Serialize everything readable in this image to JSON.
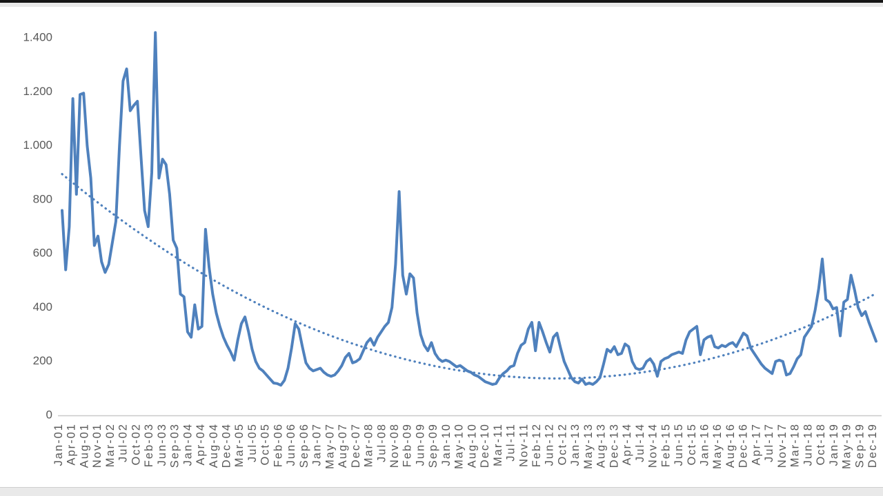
{
  "frame": {
    "background": "#ffffff",
    "top_bar_color": "#161616",
    "strip_color": "#e9e9e9"
  },
  "chart_data": {
    "type": "line",
    "title": "",
    "legend": "none",
    "grid": false,
    "axis_text_color": "#595959",
    "axis_line_color": "#c9c9c9",
    "x_axis": {
      "unit": "month",
      "first_label": "Jan-01",
      "last_label": "Dec-19",
      "tick_labels": [
        "Jan-01",
        "Apr-01",
        "Aug-01",
        "Nov-01",
        "Mar-02",
        "Jul-02",
        "Oct-02",
        "Feb-03",
        "Jun-03",
        "Sep-03",
        "Jan-04",
        "Apr-04",
        "Aug-04",
        "Dec-04",
        "Mar-05",
        "Jul-05",
        "Oct-05",
        "Feb-06",
        "Jun-06",
        "Sep-06",
        "Jan-07",
        "May-07",
        "Aug-07",
        "Dec-07",
        "Mar-08",
        "Jul-08",
        "Nov-08",
        "Feb-09",
        "Jun-09",
        "Sep-09",
        "Jan-10",
        "May-10",
        "Aug-10",
        "Dec-10",
        "Mar-11",
        "Jul-11",
        "Nov-11",
        "Feb-12",
        "Jun-12",
        "Oct-12",
        "Jan-13",
        "May-13",
        "Aug-13",
        "Dec-13",
        "Apr-14",
        "Jul-14",
        "Nov-14",
        "Feb-15",
        "Jun-15",
        "Oct-15",
        "Jan-16",
        "May-16",
        "Aug-16",
        "Dec-16",
        "Apr-17",
        "Jul-17",
        "Nov-17",
        "Mar-18",
        "Jun-18",
        "Oct-18",
        "Jan-19",
        "May-19",
        "Sep-19",
        "Dec-19"
      ]
    },
    "y_axis": {
      "range": [
        0,
        1400
      ],
      "ticks": [
        0,
        200,
        400,
        600,
        800,
        1000,
        1200,
        1400
      ],
      "tick_labels": [
        "0",
        "200",
        "400",
        "600",
        "800",
        "1.000",
        "1.200",
        "1.400"
      ],
      "number_format": "thousands-dot"
    },
    "series": [
      {
        "name": "monthly-values",
        "style": "solid",
        "color": "#4F81BD",
        "stroke_width": 4,
        "start_month": "Jan-01",
        "values": [
          760,
          540,
          700,
          1175,
          820,
          1190,
          1195,
          1000,
          880,
          630,
          665,
          570,
          530,
          560,
          640,
          720,
          1000,
          1240,
          1285,
          1130,
          1150,
          1165,
          960,
          760,
          700,
          900,
          1420,
          880,
          950,
          930,
          820,
          650,
          620,
          450,
          440,
          310,
          290,
          410,
          320,
          330,
          690,
          550,
          450,
          380,
          330,
          290,
          260,
          235,
          205,
          280,
          340,
          365,
          310,
          245,
          200,
          175,
          165,
          150,
          135,
          120,
          118,
          112,
          130,
          175,
          250,
          340,
          320,
          255,
          195,
          175,
          165,
          170,
          175,
          160,
          150,
          145,
          150,
          165,
          185,
          215,
          230,
          195,
          200,
          210,
          240,
          270,
          285,
          260,
          290,
          310,
          330,
          345,
          400,
          560,
          830,
          520,
          450,
          525,
          510,
          380,
          300,
          260,
          240,
          270,
          230,
          210,
          200,
          205,
          200,
          190,
          180,
          185,
          175,
          165,
          160,
          150,
          145,
          135,
          125,
          120,
          115,
          118,
          140,
          155,
          165,
          180,
          185,
          230,
          260,
          270,
          320,
          345,
          240,
          345,
          310,
          270,
          235,
          290,
          305,
          250,
          200,
          170,
          140,
          125,
          120,
          135,
          115,
          120,
          115,
          125,
          140,
          190,
          245,
          235,
          255,
          225,
          230,
          265,
          255,
          200,
          175,
          170,
          175,
          200,
          210,
          190,
          145,
          200,
          210,
          215,
          225,
          230,
          235,
          230,
          280,
          310,
          320,
          330,
          225,
          280,
          290,
          295,
          255,
          250,
          260,
          255,
          265,
          270,
          255,
          280,
          305,
          295,
          250,
          230,
          210,
          190,
          175,
          165,
          155,
          200,
          205,
          200,
          150,
          155,
          180,
          210,
          225,
          290,
          310,
          330,
          390,
          470,
          580,
          430,
          420,
          395,
          400,
          295,
          420,
          430,
          520,
          465,
          400,
          370,
          385,
          345,
          310,
          275
        ]
      },
      {
        "name": "trendline-polynomial",
        "style": "dotted",
        "color": "#4F81BD",
        "stroke_width": 3.2,
        "quadratic": {
          "v_min": 137,
          "t_min_month": 138,
          "a": 0.0398
        },
        "start_value": 895,
        "end_value": 452
      }
    ]
  }
}
